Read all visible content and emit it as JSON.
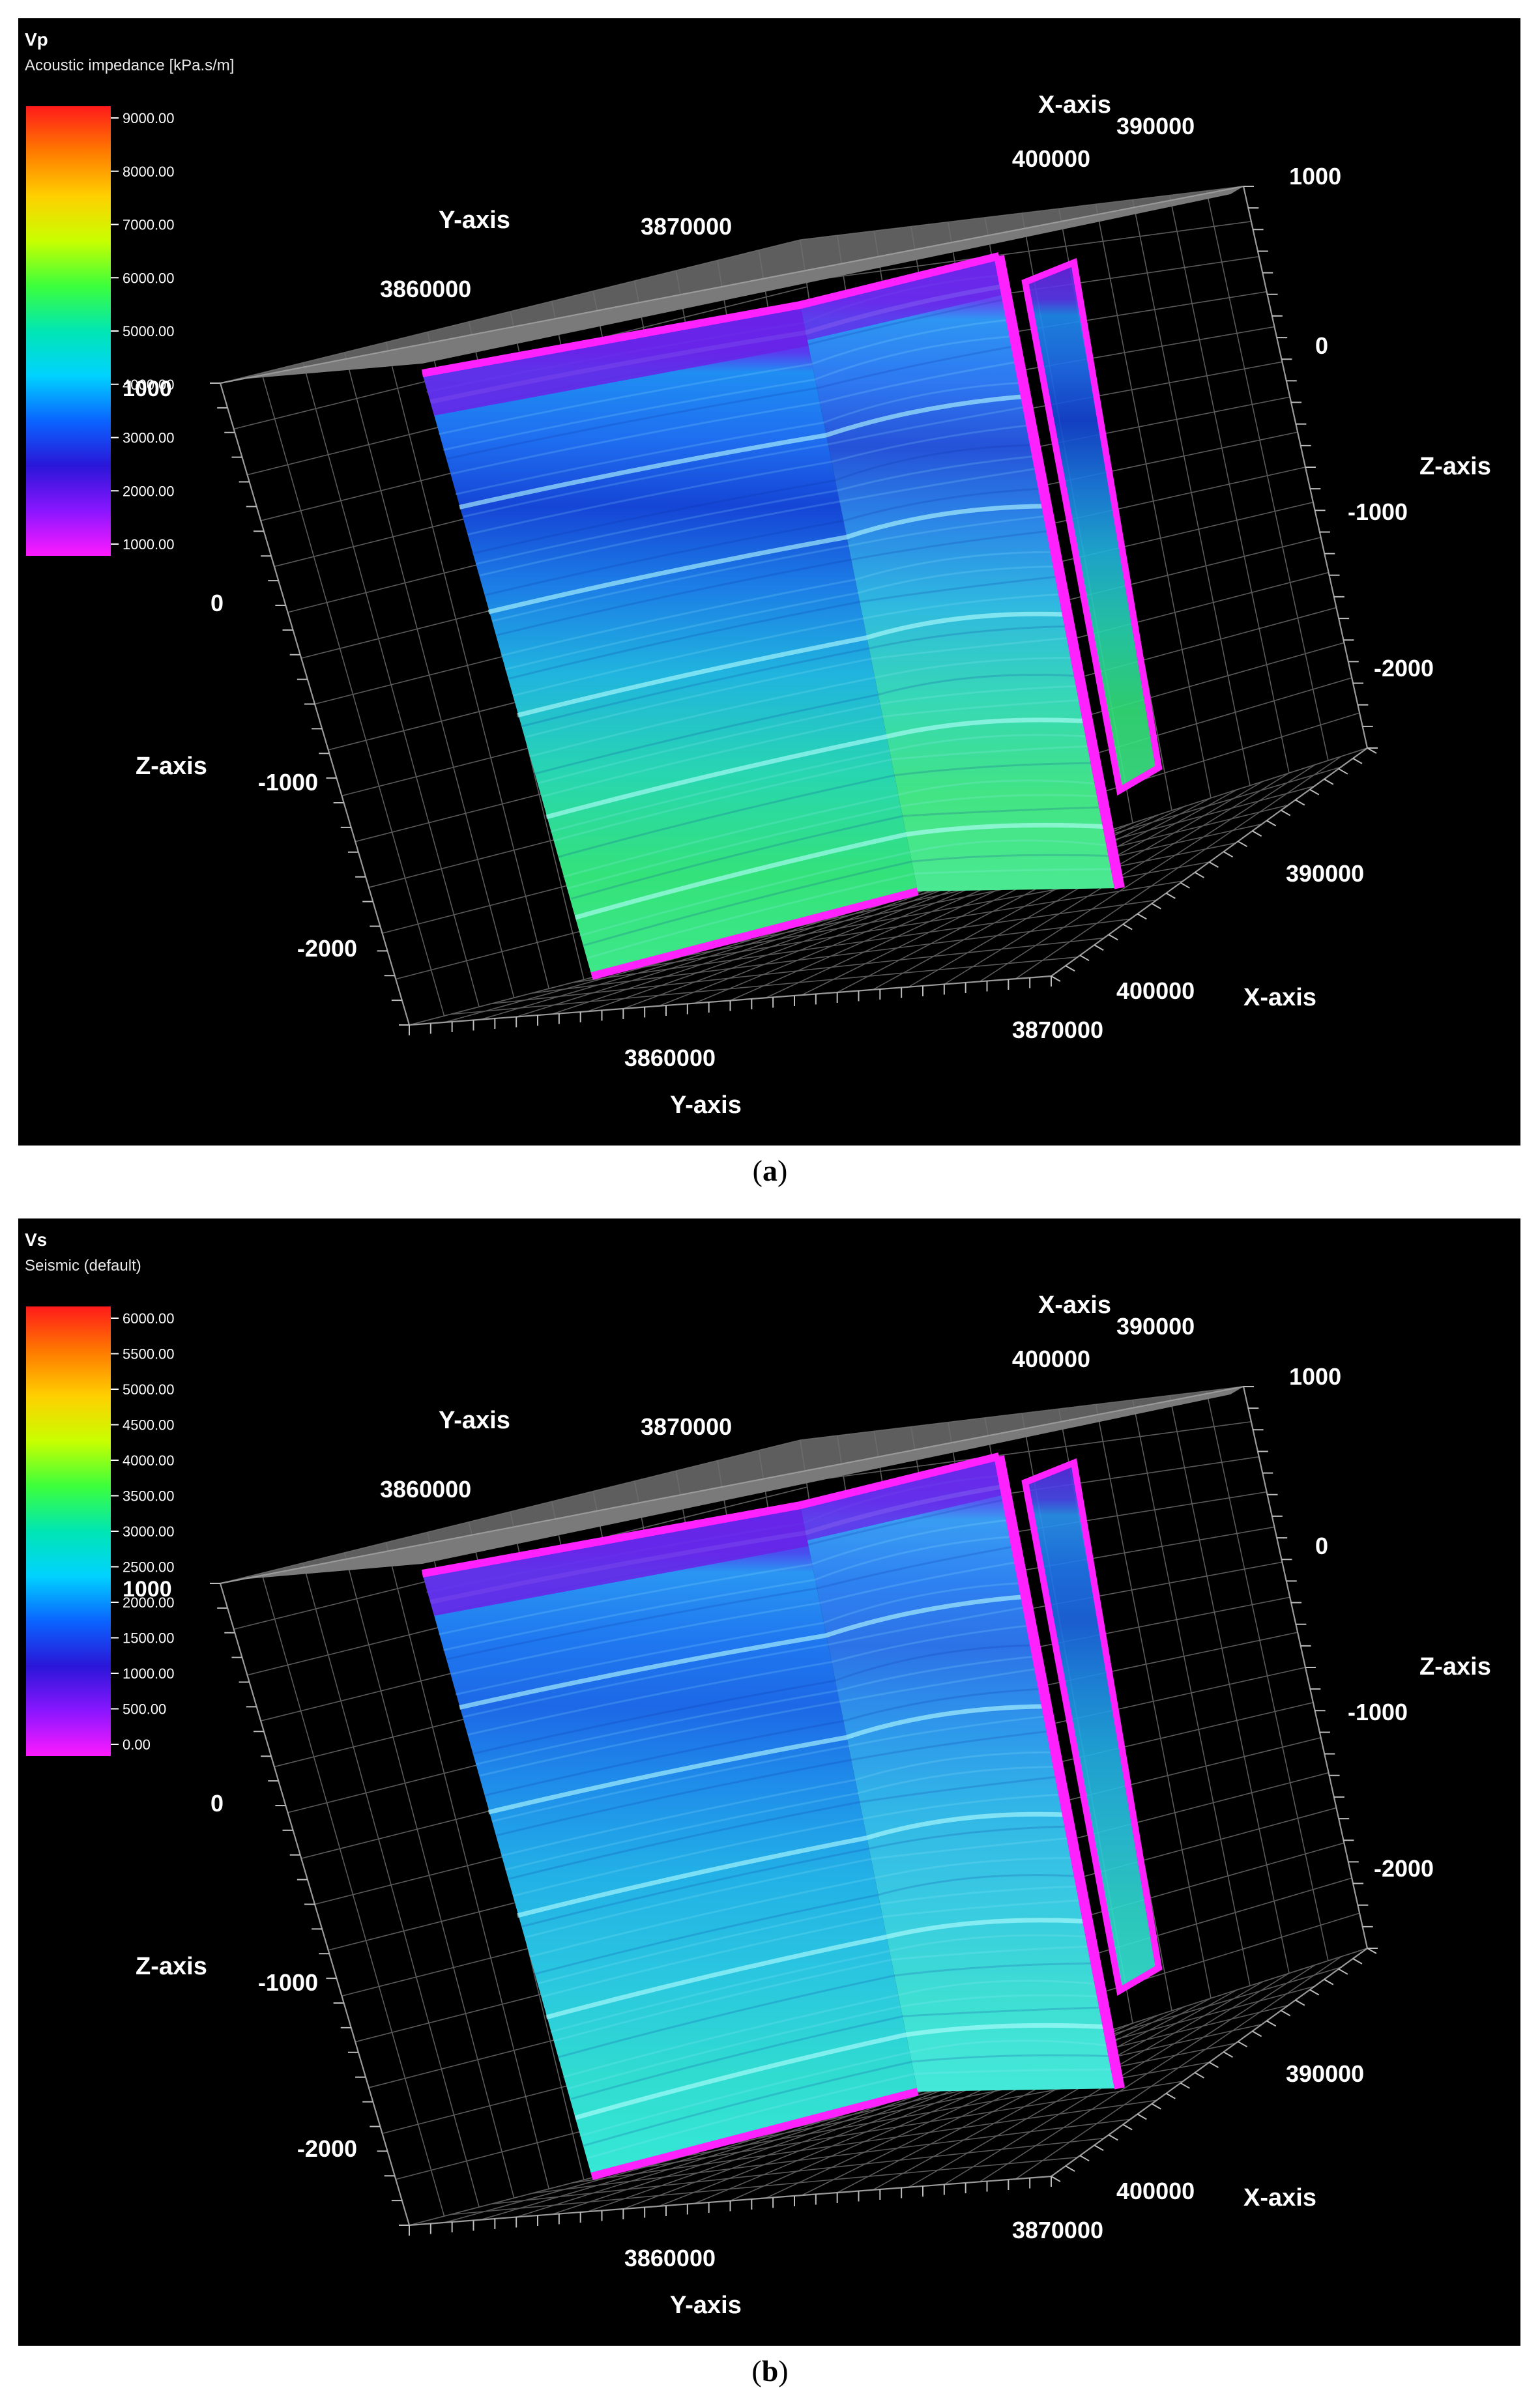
{
  "panels": [
    {
      "id": "a",
      "caption": "a",
      "property": "Vp",
      "template": "Acoustic impedance [kPa.s/m]",
      "colorbar_ticks": [
        "9000.00",
        "8000.00",
        "7000.00",
        "6000.00",
        "5000.00",
        "4000.00",
        "3000.00",
        "2000.00",
        "1000.00"
      ],
      "colorbar_overlay": "1000"
    },
    {
      "id": "b",
      "caption": "b",
      "property": "Vs",
      "template": "Seismic (default)",
      "colorbar_ticks": [
        "6000.00",
        "5500.00",
        "5000.00",
        "4500.00",
        "4000.00",
        "3500.00",
        "3000.00",
        "2500.00",
        "2000.00",
        "1500.00",
        "1000.00",
        "500.00",
        "0.00"
      ],
      "colorbar_overlay": "1000"
    }
  ],
  "axes": {
    "x_name": "X-axis",
    "y_name": "Y-axis",
    "z_name": "Z-axis",
    "x_ticks": [
      "400000",
      "390000"
    ],
    "y_ticks": [
      "3860000",
      "3870000"
    ],
    "z_right_ticks": [
      "1000",
      "0",
      "-1000",
      "-2000"
    ],
    "z_left_ticks": [
      "0",
      "-1000",
      "-2000"
    ]
  },
  "colorbar_colors": [
    "#ff1a1a",
    "#ff7a00",
    "#ffd000",
    "#c8ff00",
    "#3cff3c",
    "#00e6b4",
    "#00d2ff",
    "#0a64ff",
    "#2a16d8",
    "#8a16ff",
    "#ff1aff"
  ]
}
